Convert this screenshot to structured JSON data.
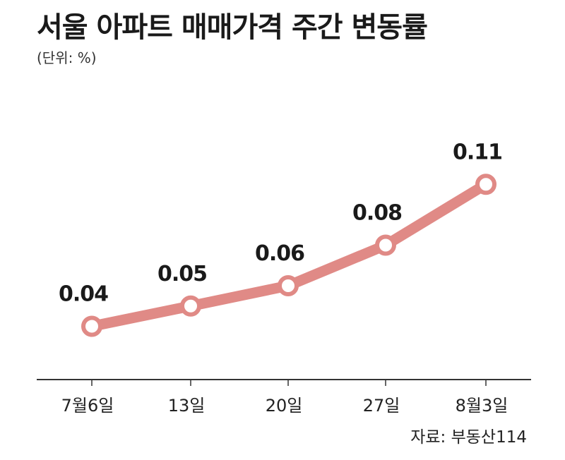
{
  "title": "서울 아파트 매매가격 주간 변동률",
  "unit": "(단위: %)",
  "source": "자료: 부동산114",
  "chart_data": {
    "type": "line",
    "title": "서울 아파트 매매가격 주간 변동률",
    "xlabel": "",
    "ylabel": "",
    "categories": [
      "7월6일",
      "13일",
      "20일",
      "27일",
      "8월3일"
    ],
    "series": [
      {
        "values": [
          0.04,
          0.05,
          0.06,
          0.08,
          0.11
        ]
      }
    ],
    "data_labels": [
      "0.04",
      "0.05",
      "0.06",
      "0.08",
      "0.11"
    ],
    "ylim": [
      0,
      0.12
    ],
    "grid": false,
    "legend": "none",
    "line_color": "#e08a86",
    "marker_fill": "#ffffff"
  }
}
